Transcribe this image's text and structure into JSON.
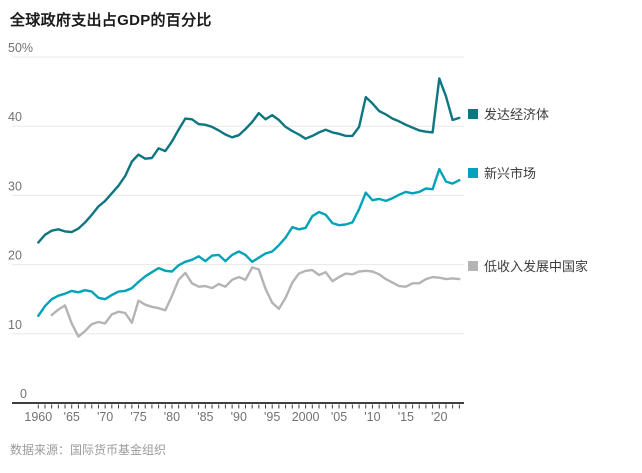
{
  "header": {
    "title": "全球政府支出占GDP的百分比"
  },
  "footer": {
    "source": "数据来源：国际货币基金组织"
  },
  "legend": [
    {
      "label": "发达经济体",
      "color": "#0d7680"
    },
    {
      "label": "新兴市场",
      "color": "#00a3b8"
    },
    {
      "label": "低收入发展中国家",
      "color": "#b4b4b2"
    }
  ],
  "colors": {
    "grid": "#e9e8e6",
    "axis": "#3f3f3f",
    "tick_label": "#757270",
    "title": "#1a1a1a",
    "source": "#9b9b9b",
    "background": "#ffffff"
  },
  "chart_data": {
    "type": "line",
    "title": "全球政府支出占GDP的百分比",
    "unit": "percent of GDP",
    "grid": "horizontal",
    "legend_position": "right",
    "x_range": [
      1960,
      2023
    ],
    "ylim": [
      0,
      50
    ],
    "y_ticks": [
      0,
      10,
      20,
      30,
      40,
      50
    ],
    "y_top_label": "50%",
    "x_tick_labels": [
      {
        "year": 1960,
        "label": "1960"
      },
      {
        "year": 1965,
        "label": "'65"
      },
      {
        "year": 1970,
        "label": "'70"
      },
      {
        "year": 1975,
        "label": "'75"
      },
      {
        "year": 1980,
        "label": "'80"
      },
      {
        "year": 1985,
        "label": "'85"
      },
      {
        "year": 1990,
        "label": "'90"
      },
      {
        "year": 1995,
        "label": "'95"
      },
      {
        "year": 2000,
        "label": "2000"
      },
      {
        "year": 2005,
        "label": "'05"
      },
      {
        "year": 2010,
        "label": "'10"
      },
      {
        "year": 2015,
        "label": "'15"
      },
      {
        "year": 2020,
        "label": "'20"
      }
    ],
    "series": [
      {
        "name": "发达经济体",
        "color": "#0d7680",
        "start_year": 1960,
        "values": [
          23.2,
          24.3,
          24.9,
          25.1,
          24.8,
          24.7,
          25.2,
          26.1,
          27.2,
          28.4,
          29.2,
          30.3,
          31.4,
          32.8,
          34.9,
          35.9,
          35.3,
          35.4,
          36.8,
          36.4,
          37.8,
          39.5,
          41.1,
          41.0,
          40.3,
          40.2,
          39.9,
          39.4,
          38.8,
          38.4,
          38.7,
          39.6,
          40.6,
          41.9,
          41.0,
          41.6,
          40.9,
          39.9,
          39.3,
          38.8,
          38.2,
          38.6,
          39.1,
          39.5,
          39.1,
          38.9,
          38.6,
          38.6,
          39.9,
          44.2,
          43.3,
          42.2,
          41.7,
          41.1,
          40.7,
          40.2,
          39.8,
          39.4,
          39.2,
          39.1,
          46.9,
          44.3,
          40.9,
          41.2
        ]
      },
      {
        "name": "新兴市场",
        "color": "#00a3b8",
        "start_year": 1960,
        "values": [
          12.6,
          14.0,
          15.0,
          15.5,
          15.8,
          16.2,
          16.0,
          16.3,
          16.1,
          15.2,
          15.0,
          15.6,
          16.1,
          16.2,
          16.6,
          17.5,
          18.3,
          18.9,
          19.5,
          19.1,
          19.0,
          19.9,
          20.4,
          20.7,
          21.2,
          20.5,
          21.3,
          21.4,
          20.5,
          21.4,
          21.9,
          21.4,
          20.4,
          21.0,
          21.6,
          21.9,
          22.8,
          23.9,
          25.4,
          25.1,
          25.3,
          27.0,
          27.6,
          27.2,
          26.0,
          25.7,
          25.8,
          26.1,
          28.0,
          30.4,
          29.3,
          29.5,
          29.2,
          29.6,
          30.1,
          30.5,
          30.3,
          30.5,
          31.0,
          30.9,
          33.8,
          32.0,
          31.7,
          32.2
        ]
      },
      {
        "name": "低收入发展中国家",
        "color": "#b4b4b2",
        "start_year": 1962,
        "values": [
          12.7,
          13.5,
          14.1,
          11.5,
          9.6,
          10.4,
          11.4,
          11.7,
          11.5,
          12.8,
          13.2,
          13.0,
          11.6,
          14.8,
          14.2,
          13.9,
          13.7,
          13.4,
          15.5,
          17.8,
          18.8,
          17.3,
          16.8,
          16.9,
          16.6,
          17.2,
          16.8,
          17.8,
          18.2,
          17.8,
          19.6,
          19.3,
          16.5,
          14.5,
          13.6,
          15.2,
          17.4,
          18.7,
          19.1,
          19.2,
          18.5,
          18.9,
          17.6,
          18.2,
          18.7,
          18.6,
          19.0,
          19.1,
          19.0,
          18.6,
          17.9,
          17.4,
          16.9,
          16.8,
          17.3,
          17.3,
          17.9,
          18.2,
          18.1,
          17.9,
          18.0,
          17.9
        ]
      }
    ],
    "source": "数据来源：国际货币基金组织"
  }
}
